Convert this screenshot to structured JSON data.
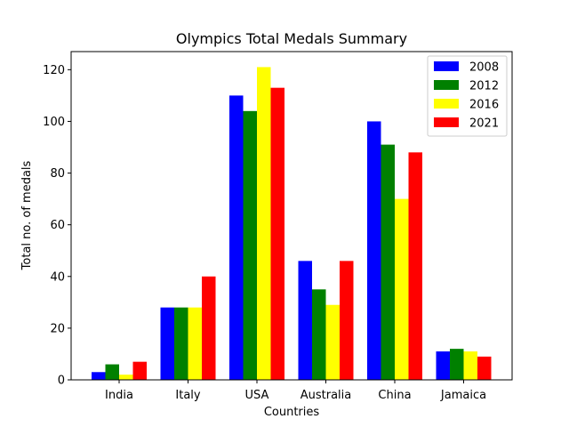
{
  "chart_data": {
    "type": "bar",
    "title": "Olympics Total Medals Summary",
    "xlabel": "Countries",
    "ylabel": "Total no. of medals",
    "categories": [
      "India",
      "Italy",
      "USA",
      "Australia",
      "China",
      "Jamaica"
    ],
    "series": [
      {
        "name": "2008",
        "color": "#0000ff",
        "values": [
          3,
          28,
          110,
          46,
          100,
          11
        ]
      },
      {
        "name": "2012",
        "color": "#008000",
        "values": [
          6,
          28,
          104,
          35,
          91,
          12
        ]
      },
      {
        "name": "2016",
        "color": "#ffff00",
        "values": [
          2,
          28,
          121,
          29,
          70,
          11
        ]
      },
      {
        "name": "2021",
        "color": "#ff0000",
        "values": [
          7,
          40,
          113,
          46,
          88,
          9
        ]
      }
    ],
    "ylim": [
      0,
      127
    ],
    "yticks": [
      0,
      20,
      40,
      60,
      80,
      100,
      120
    ],
    "grid": false,
    "legend_position": "top-right"
  }
}
